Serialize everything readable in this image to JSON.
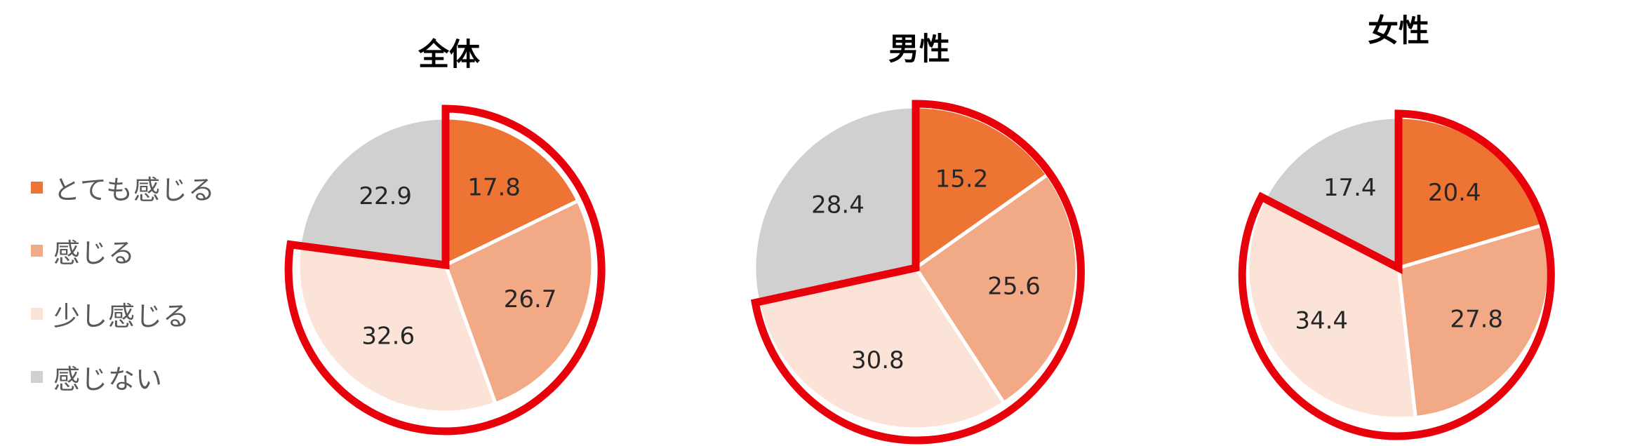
{
  "colors": {
    "very_much": "#ED7433",
    "feel": "#F2A985",
    "somewhat": "#FCE3D8",
    "not": "#D0D0D0",
    "highlight": "#E8000B",
    "separator": "#FFFFFF"
  },
  "legend": [
    {
      "label": "とても感じる",
      "color": "#ED7433"
    },
    {
      "label": "感じる",
      "color": "#F2A985"
    },
    {
      "label": "少し感じる",
      "color": "#FCE3D8"
    },
    {
      "label": "感じない",
      "color": "#D0D0D0"
    }
  ],
  "chart_data": [
    {
      "type": "pie",
      "title": "全体",
      "categories": [
        "とても感じる",
        "感じる",
        "少し感じる",
        "感じない"
      ],
      "values": [
        17.8,
        26.7,
        32.6,
        22.9
      ],
      "highlighted_categories": [
        "とても感じる",
        "感じる",
        "少し感じる"
      ]
    },
    {
      "type": "pie",
      "title": "男性",
      "categories": [
        "とても感じる",
        "感じる",
        "少し感じる",
        "感じない"
      ],
      "values": [
        15.2,
        25.6,
        30.8,
        28.4
      ],
      "highlighted_categories": [
        "とても感じる",
        "感じる",
        "少し感じる"
      ]
    },
    {
      "type": "pie",
      "title": "女性",
      "categories": [
        "とても感じる",
        "感じる",
        "少し感じる",
        "感じない"
      ],
      "values": [
        20.4,
        27.8,
        34.4,
        17.4
      ],
      "highlighted_categories": [
        "とても感じる",
        "感じる",
        "少し感じる"
      ]
    }
  ]
}
